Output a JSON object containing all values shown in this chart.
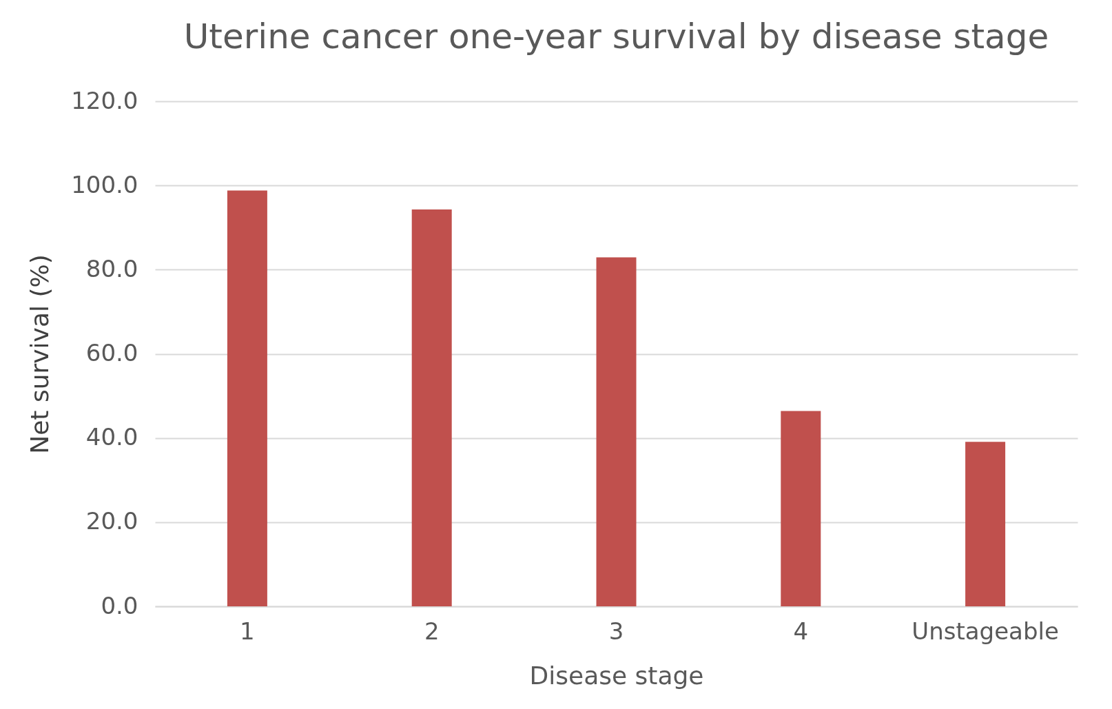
{
  "chart_data": {
    "type": "bar",
    "title": "Uterine cancer one-year survival by disease stage",
    "xlabel": "Disease stage",
    "ylabel": "Net survival (%)",
    "categories": [
      "1",
      "2",
      "3",
      "4",
      "Unstageable"
    ],
    "values": [
      98.8,
      94.3,
      82.9,
      46.4,
      39.1
    ],
    "color": "#c0504d",
    "ylim": [
      0,
      120
    ],
    "yticks": [
      {
        "value": 0,
        "label": "0.0"
      },
      {
        "value": 20,
        "label": "20.0"
      },
      {
        "value": 40,
        "label": "40.0"
      },
      {
        "value": 60,
        "label": "60.0"
      },
      {
        "value": 80,
        "label": "80.0"
      },
      {
        "value": 100,
        "label": "100.0"
      },
      {
        "value": 120,
        "label": "120.0"
      }
    ],
    "grid": "y"
  }
}
